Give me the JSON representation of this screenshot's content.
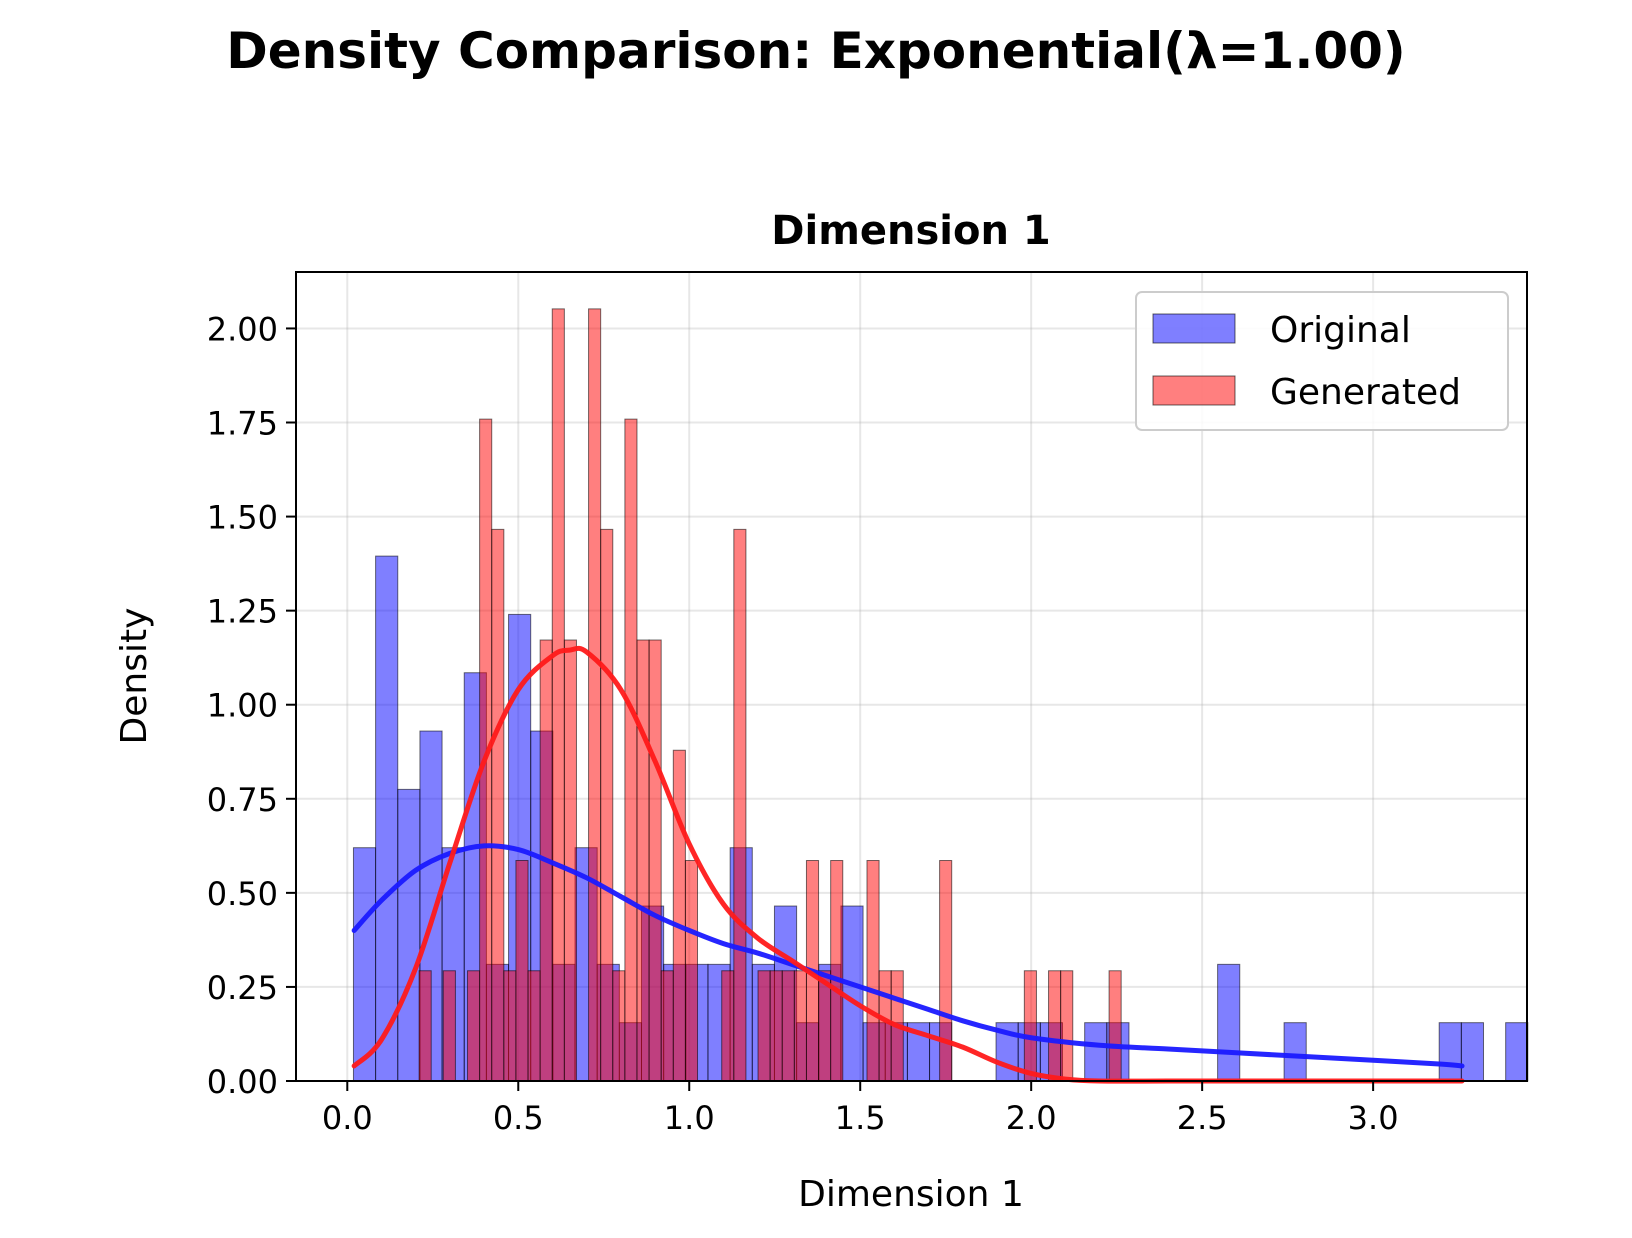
{
  "figure_title": "Density Comparison: Exponential(λ=1.00)",
  "chart_data": {
    "type": "bar",
    "title": "Dimension 1",
    "xlabel": "Dimension 1",
    "ylabel": "Density",
    "xlim": [
      -0.15,
      3.45
    ],
    "ylim": [
      0,
      2.15
    ],
    "xticks": [
      0.0,
      0.5,
      1.0,
      1.5,
      2.0,
      2.5,
      3.0
    ],
    "xtick_labels": [
      "0.0",
      "0.5",
      "1.0",
      "1.5",
      "2.0",
      "2.5",
      "3.0"
    ],
    "yticks": [
      0,
      0.25,
      0.5,
      0.75,
      1.0,
      1.25,
      1.5,
      1.75,
      2.0
    ],
    "ytick_labels": [
      "0.00",
      "0.25",
      "0.50",
      "0.75",
      "1.00",
      "1.25",
      "1.50",
      "1.75",
      "2.00"
    ],
    "grid": true,
    "legend_position": "top-right",
    "series": [
      {
        "name": "Original",
        "kind": "histogram",
        "color": "#0000ff",
        "bin_start": 0.018,
        "bin_width": 0.0648,
        "values": [
          0.62,
          1.395,
          0.775,
          0.93,
          0.62,
          1.085,
          0.31,
          1.24,
          0.93,
          0.31,
          0.62,
          0.31,
          0.155,
          0.465,
          0.31,
          0.31,
          0.31,
          0.62,
          0.31,
          0.465,
          0.155,
          0.31,
          0.465,
          0.155,
          0.155,
          0.155,
          0.155,
          0.0,
          0.0,
          0.155,
          0.155,
          0.155,
          0.0,
          0.155,
          0.155,
          0.0,
          0.0,
          0.0,
          0.0,
          0.31,
          0.0,
          0.0,
          0.155,
          0.0,
          0.0,
          0.0,
          0.0,
          0.0,
          0.0,
          0.155,
          0.155,
          0.0,
          0.155
        ]
      },
      {
        "name": "Generated",
        "kind": "histogram",
        "color": "#ff0000",
        "bin_start": 0.21,
        "bin_width": 0.0354,
        "values": [
          0.293,
          0.0,
          0.293,
          0.0,
          0.293,
          1.759,
          1.466,
          0.293,
          0.586,
          0.293,
          1.172,
          2.052,
          1.172,
          0.0,
          2.052,
          1.466,
          0.293,
          1.759,
          1.172,
          1.172,
          0.293,
          0.879,
          0.586,
          0.0,
          0.0,
          0.293,
          1.466,
          0.0,
          0.293,
          0.293,
          0.293,
          0.293,
          0.586,
          0.293,
          0.586,
          0.0,
          0.0,
          0.586,
          0.293,
          0.293,
          0.0,
          0.0,
          0.0,
          0.586,
          0.0,
          0.0,
          0.0,
          0.0,
          0.0,
          0.0,
          0.293,
          0.0,
          0.293,
          0.293,
          0.0,
          0.0,
          0.0,
          0.293
        ]
      },
      {
        "name": "Original KDE",
        "kind": "line",
        "color": "#1a1aff",
        "x": [
          0.02,
          0.1,
          0.2,
          0.3,
          0.4,
          0.5,
          0.6,
          0.7,
          0.8,
          0.9,
          1.0,
          1.1,
          1.2,
          1.3,
          1.4,
          1.5,
          1.6,
          1.7,
          1.8,
          1.9,
          2.0,
          2.2,
          2.4,
          2.6,
          2.8,
          3.0,
          3.2,
          3.26
        ],
        "y": [
          0.4,
          0.48,
          0.56,
          0.605,
          0.625,
          0.615,
          0.58,
          0.54,
          0.49,
          0.44,
          0.4,
          0.365,
          0.34,
          0.31,
          0.28,
          0.25,
          0.22,
          0.19,
          0.16,
          0.135,
          0.115,
          0.095,
          0.085,
          0.075,
          0.065,
          0.055,
          0.045,
          0.04
        ]
      },
      {
        "name": "Generated KDE",
        "kind": "line",
        "color": "#ff1a1a",
        "x": [
          0.02,
          0.1,
          0.2,
          0.3,
          0.4,
          0.5,
          0.6,
          0.65,
          0.7,
          0.8,
          0.9,
          1.0,
          1.1,
          1.2,
          1.3,
          1.4,
          1.5,
          1.6,
          1.7,
          1.8,
          1.9,
          2.0,
          2.1,
          2.2,
          2.4,
          2.6,
          2.8,
          3.0,
          3.26
        ],
        "y": [
          0.04,
          0.11,
          0.3,
          0.58,
          0.85,
          1.04,
          1.13,
          1.145,
          1.14,
          1.04,
          0.85,
          0.63,
          0.47,
          0.38,
          0.32,
          0.26,
          0.2,
          0.15,
          0.12,
          0.09,
          0.05,
          0.02,
          0.005,
          0.0,
          0.0,
          0.0,
          0.0,
          0.0,
          0.0
        ]
      }
    ]
  }
}
